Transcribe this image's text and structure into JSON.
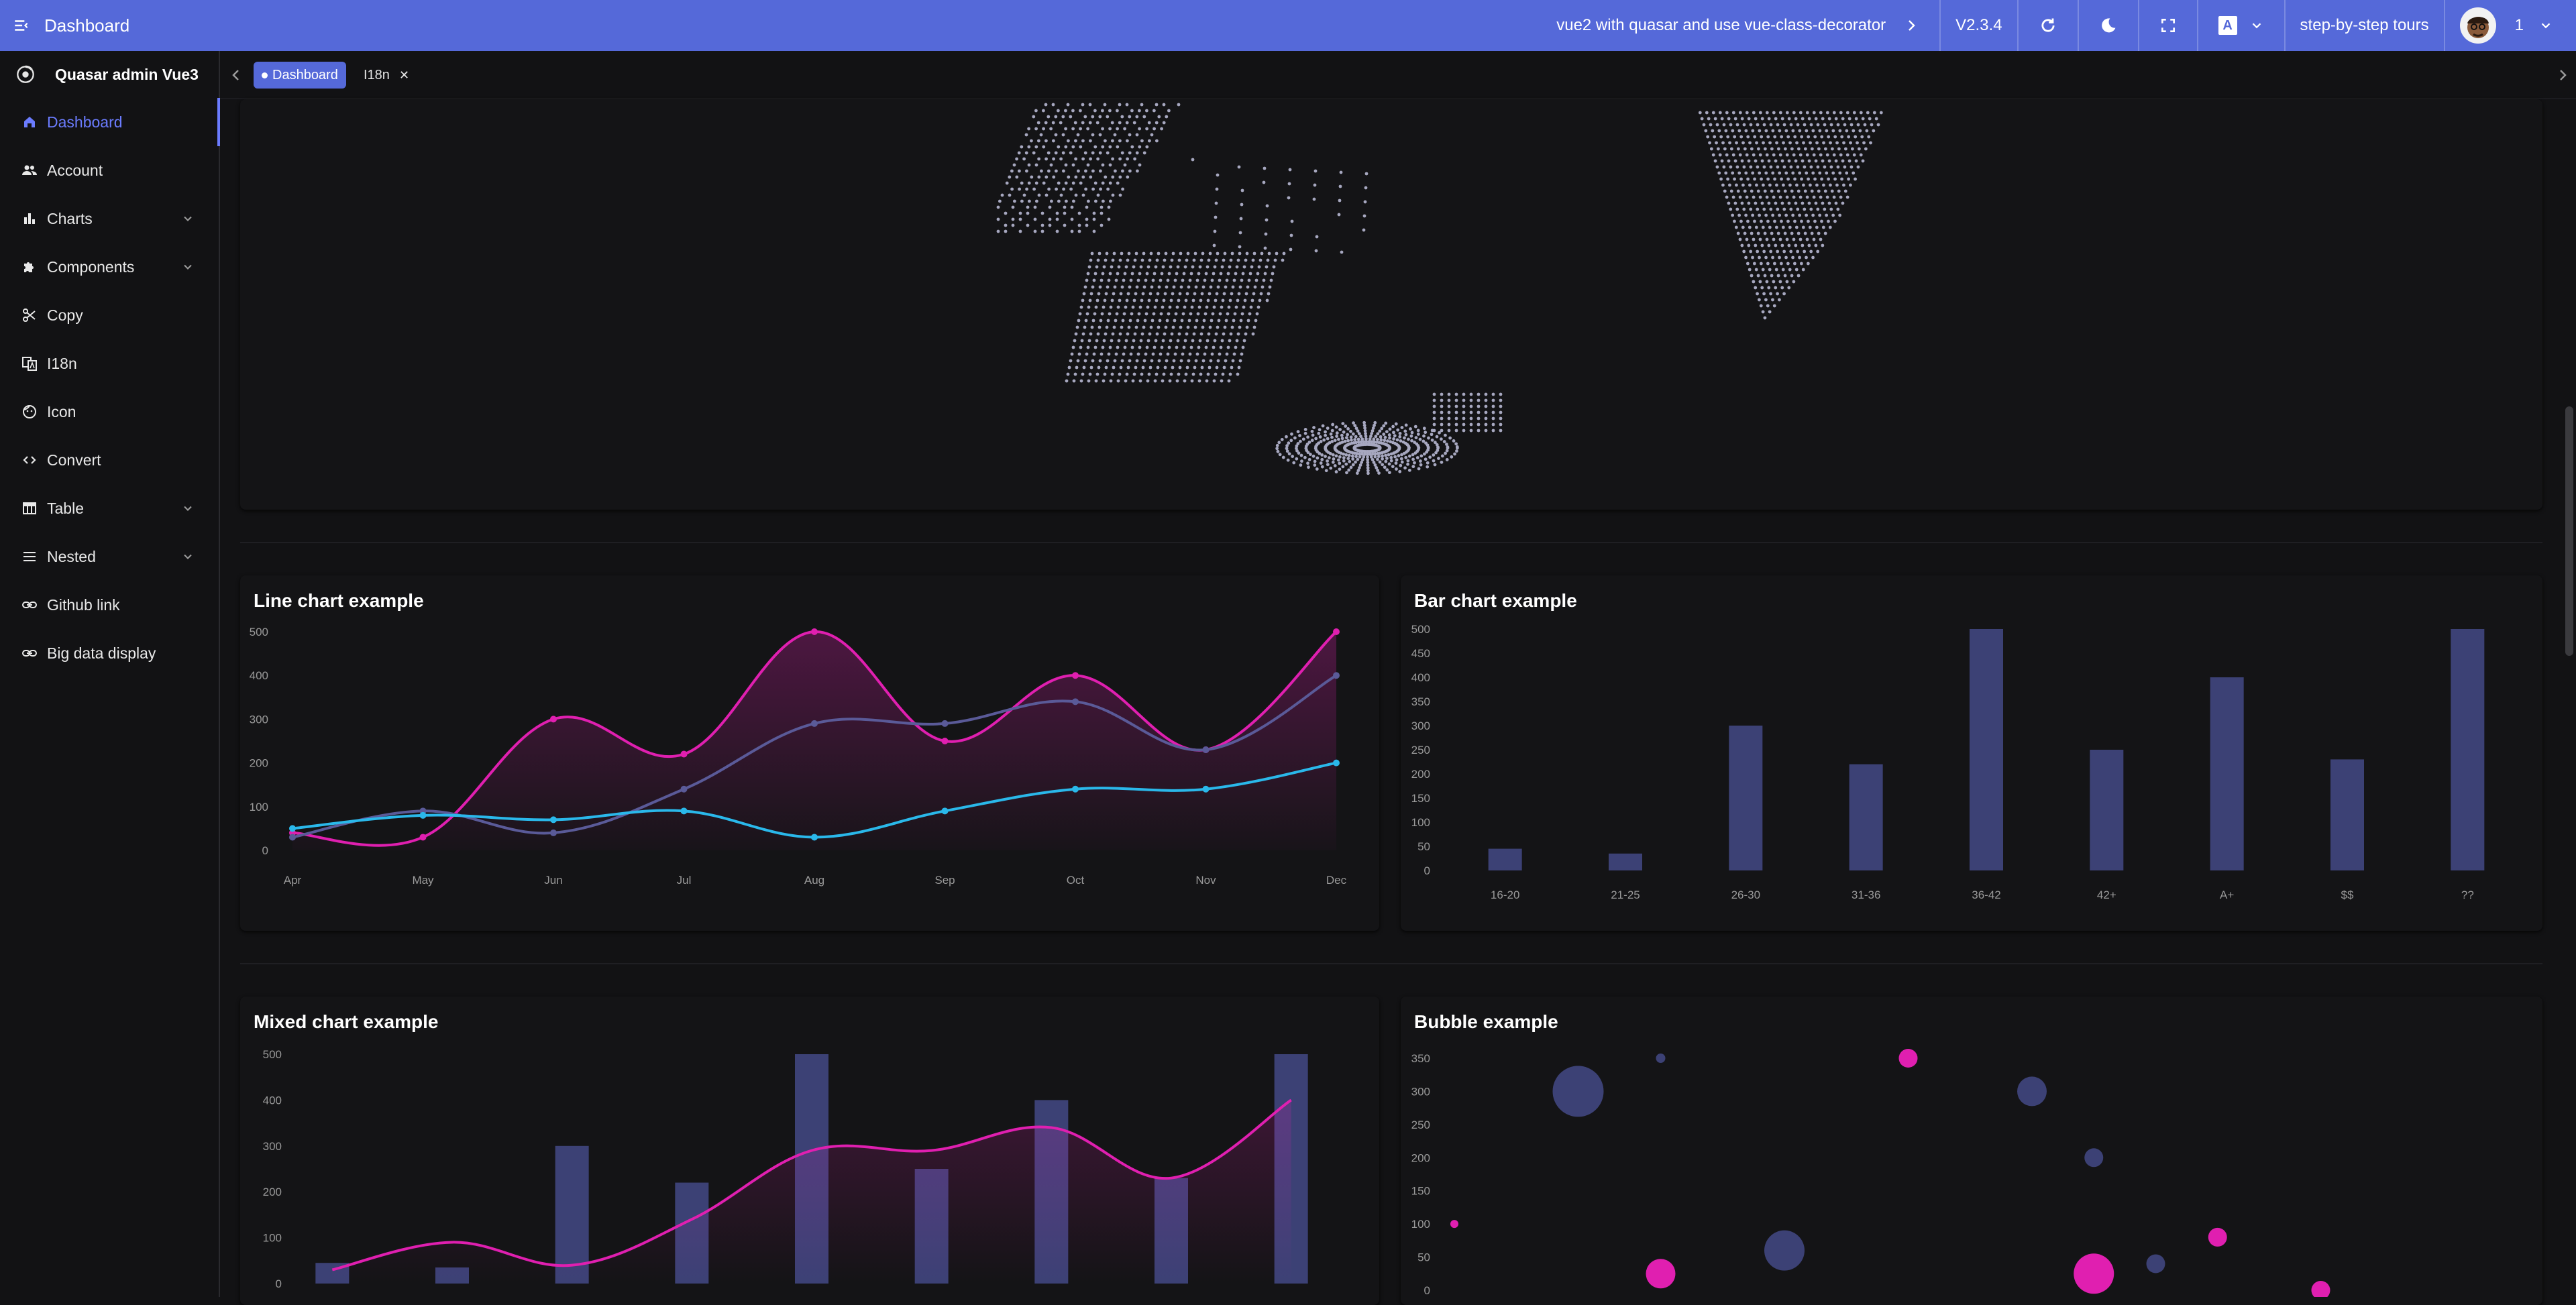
{
  "header": {
    "title": "Dashboard",
    "tagline": "vue2 with quasar and use vue-class-decorator",
    "version": "V2.3.4",
    "lang_badge": "A",
    "tours": "step-by-step tours",
    "user_count": "1"
  },
  "brand": {
    "name": "Quasar admin Vue3"
  },
  "sidebar": {
    "items": [
      {
        "label": "Dashboard",
        "icon": "home-icon"
      },
      {
        "label": "Account",
        "icon": "people-icon"
      },
      {
        "label": "Charts",
        "icon": "bar-chart-icon"
      },
      {
        "label": "Components",
        "icon": "puzzle-icon"
      },
      {
        "label": "Copy",
        "icon": "scissors-icon"
      },
      {
        "label": "I18n",
        "icon": "translate-icon"
      },
      {
        "label": "Icon",
        "icon": "face-icon"
      },
      {
        "label": "Convert",
        "icon": "code-icon"
      },
      {
        "label": "Table",
        "icon": "table-icon"
      },
      {
        "label": "Nested",
        "icon": "menu-icon"
      },
      {
        "label": "Github link",
        "icon": "link-icon"
      },
      {
        "label": "Big data display",
        "icon": "link-icon"
      }
    ]
  },
  "tabs": [
    {
      "label": "Dashboard",
      "active": true
    },
    {
      "label": "I18n",
      "active": false
    }
  ],
  "colors": {
    "accent": "#5569d9",
    "magenta": "#e01fb0",
    "cyan": "#2ab8ea",
    "slate": "#3c4175",
    "purple_line": "#5a5a98"
  },
  "line_card": {
    "title": "Line chart example"
  },
  "bar_card": {
    "title": "Bar chart example"
  },
  "mixed_card": {
    "title": "Mixed chart example"
  },
  "bubble_card": {
    "title": "Bubble example"
  },
  "chart_data": [
    {
      "type": "line",
      "title": "Line chart example",
      "categories": [
        "Apr",
        "May",
        "Jun",
        "Jul",
        "Aug",
        "Sep",
        "Oct",
        "Nov",
        "Dec"
      ],
      "ylim": [
        0,
        500
      ],
      "yticks": [
        0,
        100,
        200,
        300,
        400,
        500
      ],
      "series": [
        {
          "values": [
            40,
            30,
            300,
            220,
            500,
            250,
            400,
            230,
            500
          ],
          "color": "#e01fb0",
          "area": true
        },
        {
          "values": [
            30,
            90,
            40,
            140,
            290,
            290,
            340,
            230,
            400
          ],
          "color": "#5a5a98"
        },
        {
          "values": [
            50,
            80,
            70,
            90,
            30,
            90,
            140,
            140,
            200
          ],
          "color": "#2ab8ea"
        }
      ]
    },
    {
      "type": "bar",
      "title": "Bar chart example",
      "categories": [
        "16-20",
        "21-25",
        "26-30",
        "31-36",
        "36-42",
        "42+",
        "A+",
        "$$",
        "??"
      ],
      "values": [
        45,
        35,
        300,
        220,
        500,
        250,
        400,
        230,
        500
      ],
      "ylim": [
        0,
        500
      ],
      "yticks": [
        0,
        50,
        100,
        150,
        200,
        250,
        300,
        350,
        400,
        450,
        500
      ]
    },
    {
      "type": "bar",
      "title": "Mixed chart example",
      "bar_values": [
        45,
        35,
        300,
        220,
        500,
        250,
        400,
        230,
        500
      ],
      "line_values": [
        30,
        90,
        40,
        140,
        290,
        290,
        340,
        230,
        400
      ],
      "ylim": [
        0,
        500
      ],
      "yticks": [
        0,
        100,
        200,
        300,
        400,
        500
      ]
    },
    {
      "type": "scatter",
      "title": "Bubble example",
      "ylim": [
        0,
        350
      ],
      "yticks": [
        0,
        50,
        100,
        150,
        200,
        250,
        300,
        350
      ],
      "points": [
        {
          "x": 1,
          "y": 100,
          "r": 6,
          "color": "#e01fb0"
        },
        {
          "x": 4,
          "y": 300,
          "r": 38,
          "color": "#3c4175"
        },
        {
          "x": 6,
          "y": 25,
          "r": 22,
          "color": "#e01fb0"
        },
        {
          "x": 6,
          "y": 350,
          "r": 7,
          "color": "#3c4175"
        },
        {
          "x": 9,
          "y": 60,
          "r": 30,
          "color": "#3c4175"
        },
        {
          "x": 12,
          "y": 350,
          "r": 14,
          "color": "#e01fb0"
        },
        {
          "x": 15,
          "y": 300,
          "r": 22,
          "color": "#3c4175"
        },
        {
          "x": 16.5,
          "y": 25,
          "r": 30,
          "color": "#e01fb0"
        },
        {
          "x": 16.5,
          "y": 200,
          "r": 14,
          "color": "#3c4175"
        },
        {
          "x": 18,
          "y": 40,
          "r": 14,
          "color": "#3c4175"
        },
        {
          "x": 19.5,
          "y": 80,
          "r": 14,
          "color": "#e01fb0"
        },
        {
          "x": 22,
          "y": 0,
          "r": 14,
          "color": "#e01fb0"
        }
      ]
    }
  ]
}
